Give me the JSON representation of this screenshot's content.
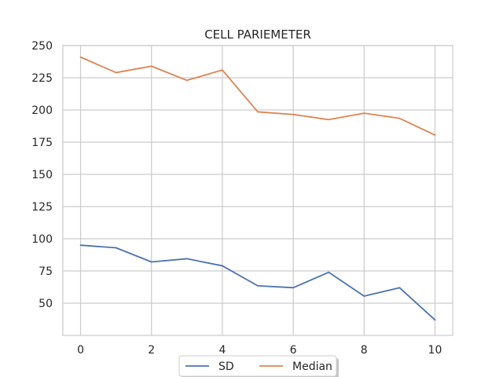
{
  "chart_data": {
    "type": "line",
    "title": "CELL PARIEMETER",
    "xlabel": "",
    "ylabel": "",
    "x": [
      0,
      1,
      2,
      3,
      4,
      5,
      6,
      7,
      8,
      9,
      10
    ],
    "xticks": [
      0,
      2,
      4,
      6,
      8,
      10
    ],
    "yticks": [
      50,
      75,
      100,
      125,
      150,
      175,
      200,
      225,
      250
    ],
    "xlim": [
      -0.5,
      10.5
    ],
    "ylim": [
      25,
      250
    ],
    "grid": true,
    "legend_position": "bottom-center",
    "series": [
      {
        "name": "SD",
        "color": "#4c72b0",
        "values": [
          95,
          93,
          82,
          84.5,
          79,
          63.5,
          62,
          74,
          55.5,
          62,
          37
        ]
      },
      {
        "name": "Median",
        "color": "#dd8452",
        "values": [
          241,
          229,
          234,
          223,
          231,
          198.5,
          196.5,
          192.5,
          197.5,
          193.5,
          180.5
        ]
      }
    ]
  }
}
